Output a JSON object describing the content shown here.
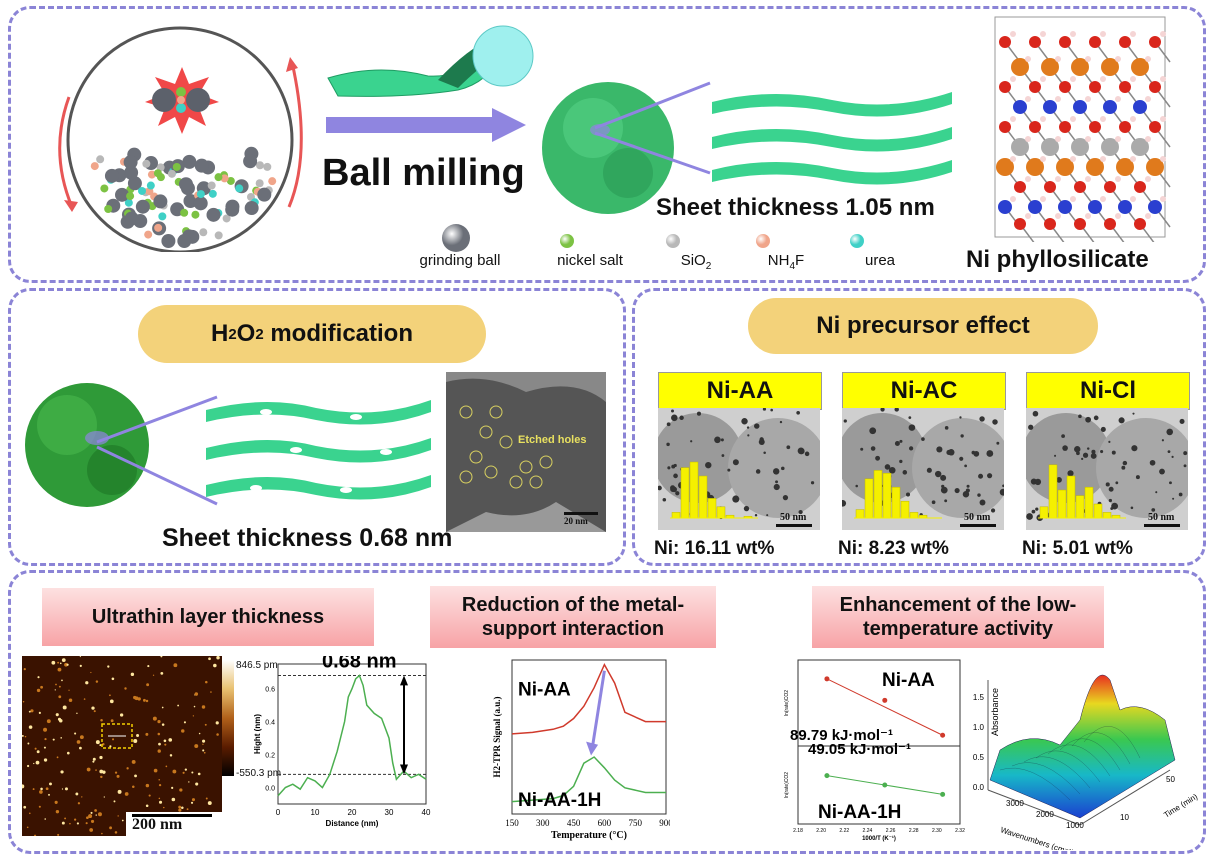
{
  "top": {
    "process_label": "Ball milling",
    "sheet_thickness": "Sheet thickness 1.05 nm",
    "product_label": "Ni phyllosilicate",
    "legend": [
      {
        "label": "grinding ball",
        "color": "#6b6f78"
      },
      {
        "label": "nickel salt",
        "color": "#7cc243"
      },
      {
        "label": "SiO2",
        "color": "#b8b8b8"
      },
      {
        "label": "NH4F",
        "color": "#f0a58a"
      },
      {
        "label": "urea",
        "color": "#3fd0c6"
      }
    ]
  },
  "middle_left": {
    "title_prefix": "H",
    "title_sub1": "2",
    "title_mid": "O",
    "title_sub2": "2",
    "title_suffix": " modification",
    "sheet_thickness": "Sheet thickness 0.68 nm",
    "tem_annotation": "Etched holes",
    "tem_scale": "20 nm"
  },
  "middle_right": {
    "title": "Ni precursor effect",
    "samples": [
      {
        "name": "Ni-AA",
        "loading": "Ni: 16.11 wt%",
        "scale": "50 nm",
        "hist": [
          0.1,
          0.9,
          1.0,
          0.75,
          0.35,
          0.2,
          0.05,
          0,
          0.03
        ]
      },
      {
        "name": "Ni-AC",
        "loading": "Ni: 8.23 wt%",
        "scale": "50 nm",
        "hist": [
          0.15,
          0.7,
          0.85,
          0.8,
          0.55,
          0.3,
          0.1,
          0.05,
          0
        ]
      },
      {
        "name": "Ni-Cl",
        "loading": "Ni: 5.01 wt%",
        "scale": "50 nm",
        "hist": [
          0.2,
          0.95,
          0.5,
          0.75,
          0.4,
          0.55,
          0.25,
          0.1,
          0.05
        ]
      }
    ]
  },
  "bottom": {
    "sec1_title": "Ultrathin layer thickness",
    "sec2_title": "Reduction of the metal-support interaction",
    "sec3_title": "Enhancement of the low-temperature activity",
    "afm": {
      "scale_bar": "200 nm",
      "cbar_max": "846.5 pm",
      "cbar_min": "-550.3 pm"
    },
    "profile": {
      "annotation": "0.68 nm",
      "xlabel": "Distance (nm)",
      "ylabel": "Hight (nm)",
      "xticks": [
        "0",
        "10",
        "20",
        "30",
        "40"
      ],
      "yticks": [
        "0.0",
        "0.2",
        "0.4",
        "0.6"
      ]
    },
    "tpr": {
      "ylabel": "H2-TPR Signal (a.u.)",
      "xlabel": "Temperature (°C)",
      "xticks": [
        "150",
        "300",
        "450",
        "600",
        "750",
        "900"
      ],
      "series1": "Ni-AA",
      "series2": "Ni-AA-1H"
    },
    "arrhenius": {
      "series1": "Ni-AA",
      "series2": "Ni-AA-1H",
      "ea1": "89.79 kJ·mol⁻¹",
      "ea2": "49.05 kJ·mol⁻¹",
      "xlabel": "1000/T (K⁻¹)",
      "xticks": [
        "2.18",
        "2.20",
        "2.22",
        "2.24",
        "2.26",
        "2.28",
        "2.30",
        "2.32"
      ],
      "ylabel": "ln(rate)CO2"
    },
    "ir3d": {
      "z_label": "Absorbance",
      "x_label": "Wavenumbers (cm⁻¹)",
      "y_label": "Time (min)",
      "x_ticks": [
        "3000",
        "2000",
        "1000"
      ],
      "y_ticks": [
        "10",
        "50"
      ],
      "z_ticks": [
        "0.0",
        "0.5",
        "1.0",
        "1.5"
      ]
    }
  },
  "chart_data": [
    {
      "type": "line",
      "xlabel": "Distance (nm)",
      "ylabel": "Hight (nm)",
      "xlim": [
        0,
        40
      ],
      "ylim": [
        -0.1,
        0.75
      ],
      "x": [
        0,
        2,
        4,
        6,
        8,
        10,
        12,
        14,
        16,
        18,
        19,
        20,
        21,
        22,
        23,
        24,
        26,
        28,
        30,
        31,
        32,
        34,
        36,
        38,
        40
      ],
      "series": [
        {
          "values": [
            -0.05,
            0.0,
            0.02,
            -0.01,
            0.06,
            0.04,
            0.0,
            0.08,
            0.22,
            0.4,
            0.55,
            0.6,
            0.66,
            0.68,
            0.62,
            0.5,
            0.45,
            0.42,
            0.3,
            0.15,
            0.05,
            0.1,
            0.06,
            0.08,
            0.05
          ]
        }
      ]
    },
    {
      "type": "line",
      "xlabel": "Temperature (°C)",
      "ylabel": "H2-TPR Signal (a.u.)",
      "xlim": [
        150,
        900
      ],
      "x": [
        150,
        250,
        350,
        400,
        450,
        500,
        550,
        600,
        650,
        700,
        800,
        900
      ],
      "series": [
        {
          "name": "Ni-AA",
          "values": [
            0.52,
            0.53,
            0.55,
            0.57,
            0.62,
            0.7,
            0.82,
            0.97,
            0.85,
            0.66,
            0.6,
            0.6
          ]
        },
        {
          "name": "Ni-AA-1H",
          "values": [
            0.08,
            0.09,
            0.1,
            0.12,
            0.18,
            0.33,
            0.37,
            0.3,
            0.22,
            0.17,
            0.14,
            0.14
          ]
        }
      ]
    },
    {
      "type": "scatter",
      "xlabel": "1000/T (K⁻¹)",
      "xlim": [
        2.18,
        2.32
      ],
      "series": [
        {
          "name": "Ni-AA",
          "x": [
            2.205,
            2.255,
            2.305
          ],
          "values": [
            4.45,
            4.05,
            3.4
          ]
        },
        {
          "name": "Ni-AA-1H",
          "x": [
            2.205,
            2.255,
            2.305
          ],
          "values": [
            3.62,
            3.5,
            3.38
          ]
        }
      ]
    }
  ]
}
